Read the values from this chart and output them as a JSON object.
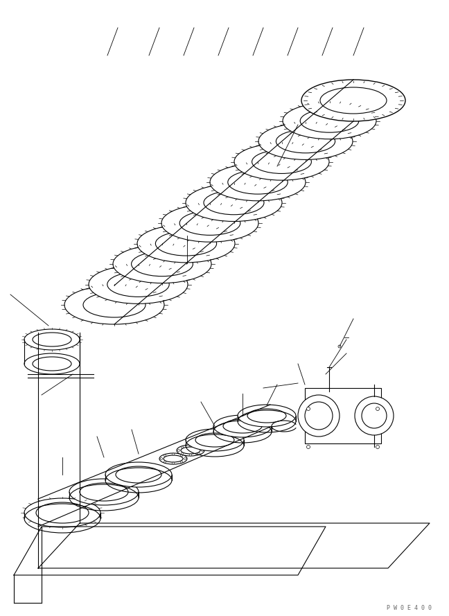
{
  "bg_color": "#ffffff",
  "line_color": "#000000",
  "watermark": "P W 0 E 4 0 0",
  "figsize": [
    6.48,
    8.89
  ],
  "dpi": 100
}
